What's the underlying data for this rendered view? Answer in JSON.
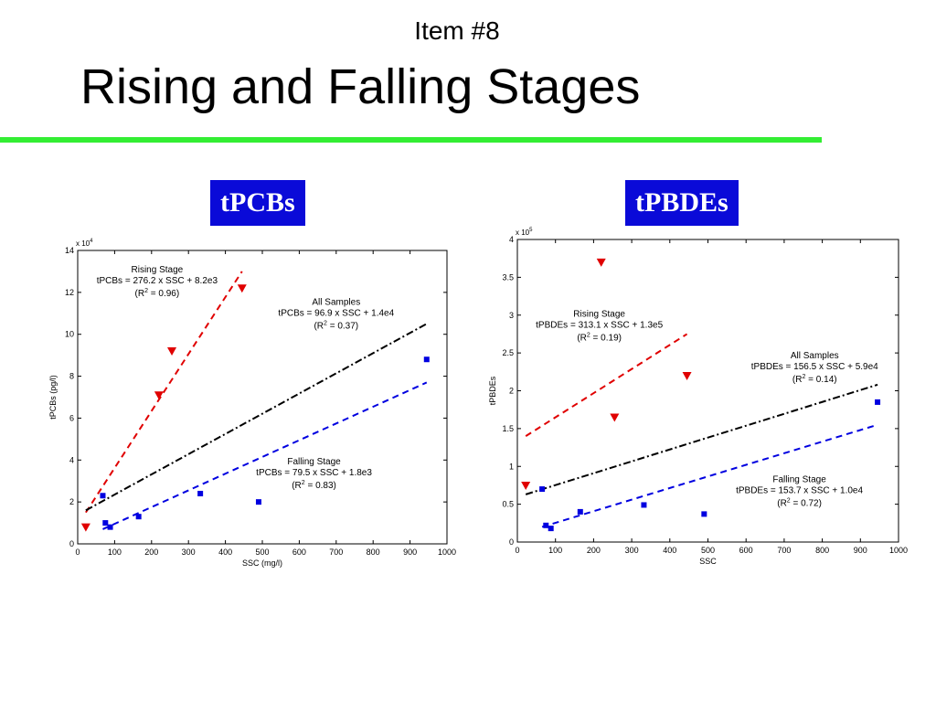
{
  "slide": {
    "item": "Item #8",
    "title": "Rising and Falling Stages",
    "rule_color": "#33ee33",
    "label_bg": "#0a0ad8"
  },
  "chart_data": [
    {
      "type": "scatter",
      "label": "tPCBs",
      "xlabel": "SSC (mg/l)",
      "ylabel": "tPCBs (pg/l)",
      "y_multiplier": "x 10",
      "y_exponent": "4",
      "xlim": [
        0,
        1000
      ],
      "ylim": [
        0,
        14
      ],
      "xticks": [
        0,
        100,
        200,
        300,
        400,
        500,
        600,
        700,
        800,
        900,
        1000
      ],
      "yticks": [
        0,
        2,
        4,
        6,
        8,
        10,
        12,
        14
      ],
      "series": [
        {
          "marker": "triangle-down",
          "color": "#e00000",
          "points": [
            [
              22,
              0.8
            ],
            [
              220,
              7.1
            ],
            [
              255,
              9.2
            ],
            [
              445,
              12.2
            ]
          ]
        },
        {
          "marker": "square",
          "color": "#0000e0",
          "points": [
            [
              68,
              2.3
            ],
            [
              75,
              1.0
            ],
            [
              88,
              0.8
            ],
            [
              165,
              1.3
            ],
            [
              332,
              2.4
            ],
            [
              490,
              2.0
            ],
            [
              945,
              8.8
            ]
          ]
        }
      ],
      "lines": [
        {
          "style": "dash",
          "color": "#e00000",
          "from": [
            22,
            1.5
          ],
          "to": [
            445,
            13.0
          ]
        },
        {
          "style": "dashdot",
          "color": "#000000",
          "from": [
            22,
            1.6
          ],
          "to": [
            945,
            10.5
          ]
        },
        {
          "style": "dash",
          "color": "#0000e0",
          "from": [
            68,
            0.7
          ],
          "to": [
            945,
            7.7
          ]
        }
      ],
      "annotations": [
        {
          "x": 215,
          "y": 12.95,
          "lines": [
            "Rising Stage",
            "tPCBs = 276.2 x SSC + 8.2e3"
          ],
          "r2": "0.96"
        },
        {
          "x": 700,
          "y": 11.4,
          "lines": [
            "All Samples",
            "tPCBs = 96.9 x SSC + 1.4e4"
          ],
          "r2": "0.37"
        },
        {
          "x": 640,
          "y": 3.8,
          "lines": [
            "Falling Stage",
            "tPCBs = 79.5 x SSC + 1.8e3"
          ],
          "r2": "0.83"
        }
      ]
    },
    {
      "type": "scatter",
      "label": "tPBDEs",
      "xlabel": "SSC",
      "ylabel": "tPBDEs",
      "y_multiplier": "x 10",
      "y_exponent": "5",
      "xlim": [
        0,
        1000
      ],
      "ylim": [
        0,
        4
      ],
      "xticks": [
        0,
        100,
        200,
        300,
        400,
        500,
        600,
        700,
        800,
        900,
        1000
      ],
      "yticks": [
        0,
        0.5,
        1,
        1.5,
        2,
        2.5,
        3,
        3.5,
        4
      ],
      "series": [
        {
          "marker": "triangle-down",
          "color": "#e00000",
          "points": [
            [
              22,
              0.75
            ],
            [
              220,
              3.7
            ],
            [
              255,
              1.65
            ],
            [
              445,
              2.2
            ]
          ]
        },
        {
          "marker": "square",
          "color": "#0000e0",
          "points": [
            [
              65,
              0.7
            ],
            [
              75,
              0.22
            ],
            [
              88,
              0.18
            ],
            [
              165,
              0.4
            ],
            [
              332,
              0.49
            ],
            [
              490,
              0.37
            ],
            [
              945,
              1.85
            ]
          ]
        }
      ],
      "lines": [
        {
          "style": "dash",
          "color": "#e00000",
          "from": [
            22,
            1.4
          ],
          "to": [
            445,
            2.75
          ]
        },
        {
          "style": "dashdot",
          "color": "#000000",
          "from": [
            22,
            0.63
          ],
          "to": [
            945,
            2.08
          ]
        },
        {
          "style": "dash",
          "color": "#0000e0",
          "from": [
            65,
            0.2
          ],
          "to": [
            945,
            1.55
          ]
        }
      ],
      "annotations": [
        {
          "x": 215,
          "y": 2.98,
          "lines": [
            "Rising Stage",
            "tPBDEs = 313.1 x SSC + 1.3e5"
          ],
          "r2": "0.19"
        },
        {
          "x": 780,
          "y": 2.43,
          "lines": [
            "All Samples",
            "tPBDEs = 156.5 x SSC + 5.9e4"
          ],
          "r2": "0.14"
        },
        {
          "x": 740,
          "y": 0.79,
          "lines": [
            "Falling Stage",
            "tPBDEs = 153.7 x SSC + 1.0e4"
          ],
          "r2": "0.72"
        }
      ]
    }
  ]
}
